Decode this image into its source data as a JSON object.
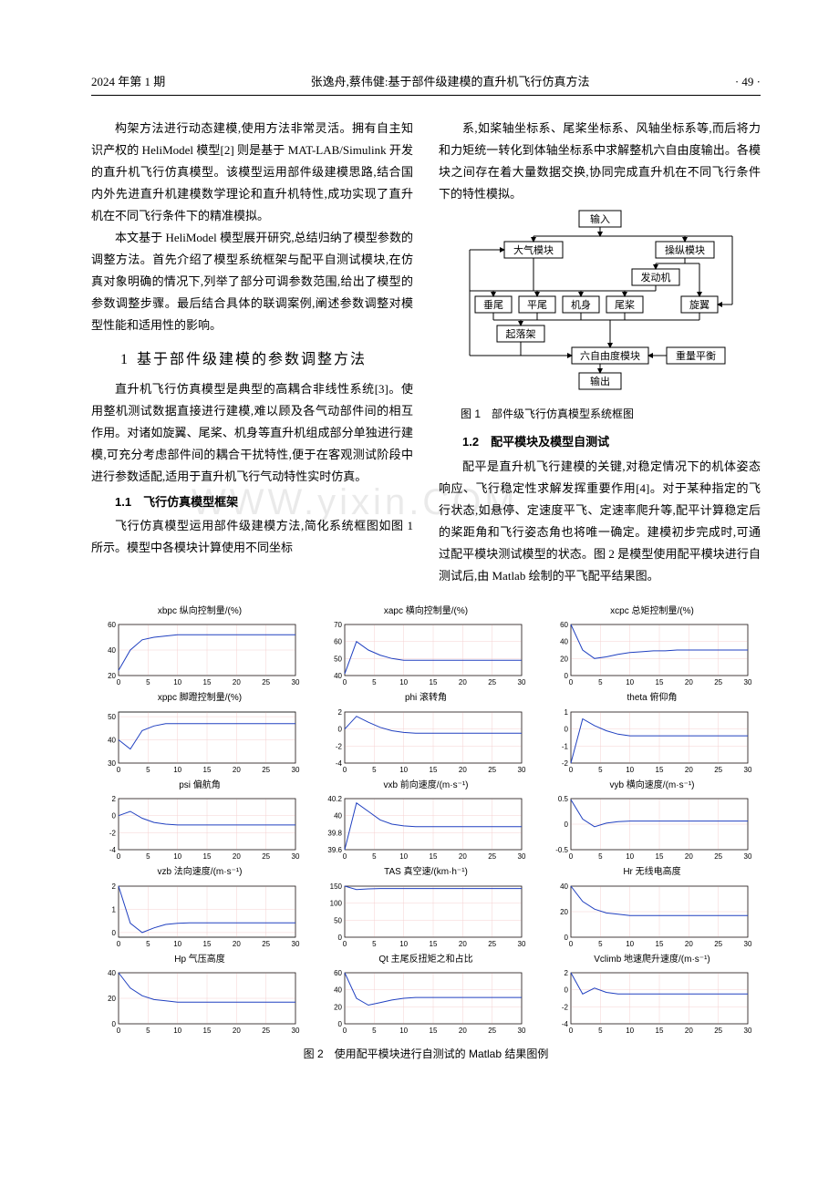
{
  "header": {
    "left": "2024 年第 1 期",
    "center": "张逸舟,蔡伟健:基于部件级建模的直升机飞行仿真方法",
    "right": "· 49 ·"
  },
  "text": {
    "p1": "构架方法进行动态建模,使用方法非常灵活。拥有自主知识产权的 HeliModel 模型[2] 则是基于 MAT-LAB/Simulink 开发的直升机飞行仿真模型。该模型运用部件级建模思路,结合国内外先进直升机建模数学理论和直升机特性,成功实现了直升机在不同飞行条件下的精准模拟。",
    "p2": "本文基于 HeliModel 模型展开研究,总结归纳了模型参数的调整方法。首先介绍了模型系统框架与配平自测试模块,在仿真对象明确的情况下,列举了部分可调参数范围,给出了模型的参数调整步骤。最后结合具体的联调案例,阐述参数调整对模型性能和适用性的影响。",
    "sec1_title": "基于部件级建模的参数调整方法",
    "sec1_num": "1",
    "p3": "直升机飞行仿真模型是典型的高耦合非线性系统[3]。使用整机测试数据直接进行建模,难以顾及各气动部件间的相互作用。对诸如旋翼、尾桨、机身等直升机组成部分单独进行建模,可充分考虑部件间的耦合干扰特性,便于在客观测试阶段中进行参数适配,适用于直升机飞行气动特性实时仿真。",
    "sec11_title": "1.1　飞行仿真模型框架",
    "p4": "飞行仿真模型运用部件级建模方法,简化系统框图如图 1 所示。模型中各模块计算使用不同坐标",
    "p5": "系,如桨轴坐标系、尾桨坐标系、风轴坐标系等,而后将力和力矩统一转化到体轴坐标系中求解整机六自由度输出。各模块之间存在着大量数据交换,协同完成直升机在不同飞行条件下的特性模拟。",
    "fig1_caption": "图 1　部件级飞行仿真模型系统框图",
    "sec12_title": "1.2　配平模块及模型自测试",
    "p6": "配平是直升机飞行建模的关键,对稳定情况下的机体姿态响应、飞行稳定性求解发挥重要作用[4]。对于某种指定的飞行状态,如悬停、定速度平飞、定速率爬升等,配平计算稳定后的桨距角和飞行姿态角也将唯一确定。建模初步完成时,可通过配平模块测试模型的状态。图 2 是模型使用配平模块进行自测试后,由 Matlab 绘制的平飞配平结果图。",
    "fig2_caption": "图 2　使用配平模块进行自测试的 Matlab 结果图例",
    "watermark": "WWW.YIXIN.COM"
  },
  "fig1": {
    "boxes": {
      "input": "输入",
      "atmo": "大气模块",
      "ctrl": "操纵模块",
      "engine": "发动机",
      "vtail": "垂尾",
      "htail": "平尾",
      "body": "机身",
      "tailrotor": "尾桨",
      "rotor": "旋翼",
      "gear": "起落架",
      "sixdof": "六自由度模块",
      "weight": "重量平衡",
      "output": "输出"
    }
  },
  "fig2": {
    "x_ticks": [
      0,
      5,
      10,
      15,
      20,
      25,
      30
    ],
    "grid_color": "#f5d0d0",
    "line_color": "#2040c0",
    "charts": [
      {
        "title": "xbpc 纵向控制量/(%)",
        "yticks": [
          "20",
          "40",
          "60"
        ],
        "ylim": [
          20,
          60
        ],
        "y": [
          24,
          40,
          48,
          50,
          51,
          52,
          52,
          52,
          52,
          52,
          52,
          52,
          52,
          52,
          52,
          52
        ]
      },
      {
        "title": "xapc 横向控制量/(%)",
        "yticks": [
          "40",
          "50",
          "60",
          "70"
        ],
        "ylim": [
          40,
          70
        ],
        "y": [
          41,
          60,
          55,
          52,
          50,
          49,
          49,
          49,
          49,
          49,
          49,
          49,
          49,
          49,
          49,
          49
        ]
      },
      {
        "title": "xcpc 总矩控制量/(%)",
        "yticks": [
          "0",
          "20",
          "40",
          "60"
        ],
        "ylim": [
          0,
          60
        ],
        "y": [
          60,
          30,
          20,
          22,
          25,
          27,
          28,
          29,
          29,
          30,
          30,
          30,
          30,
          30,
          30,
          30
        ]
      },
      {
        "title": "xppc 脚蹬控制量/(%)",
        "yticks": [
          "30",
          "40",
          "50"
        ],
        "ylim": [
          30,
          52
        ],
        "y": [
          40,
          36,
          44,
          46,
          47,
          47,
          47,
          47,
          47,
          47,
          47,
          47,
          47,
          47,
          47,
          47
        ]
      },
      {
        "title": "phi 滚转角",
        "yticks": [
          "-4",
          "-2",
          "0",
          "2"
        ],
        "ylim": [
          -4,
          2
        ],
        "y": [
          0,
          1.5,
          0.8,
          0.2,
          -0.2,
          -0.4,
          -0.5,
          -0.5,
          -0.5,
          -0.5,
          -0.5,
          -0.5,
          -0.5,
          -0.5,
          -0.5,
          -0.5
        ]
      },
      {
        "title": "theta 俯仰角",
        "yticks": [
          "-2",
          "-1",
          "0",
          "1"
        ],
        "ylim": [
          -2,
          1
        ],
        "y": [
          -2,
          0.6,
          0.2,
          -0.1,
          -0.3,
          -0.4,
          -0.4,
          -0.4,
          -0.4,
          -0.4,
          -0.4,
          -0.4,
          -0.4,
          -0.4,
          -0.4,
          -0.4
        ]
      },
      {
        "title": "psi 偏航角",
        "yticks": [
          "-4",
          "-2",
          "0",
          "2"
        ],
        "ylim": [
          -4,
          2
        ],
        "y": [
          0,
          0.5,
          -0.3,
          -0.8,
          -1,
          -1.1,
          -1.1,
          -1.1,
          -1.1,
          -1.1,
          -1.1,
          -1.1,
          -1.1,
          -1.1,
          -1.1,
          -1.1
        ]
      },
      {
        "title": "vxb 前向速度/(m·s⁻¹)",
        "yticks": [
          "39.6",
          "39.8",
          "40",
          "40.2"
        ],
        "ylim": [
          39.6,
          40.2
        ],
        "y": [
          39.6,
          40.15,
          40.05,
          39.95,
          39.9,
          39.88,
          39.87,
          39.87,
          39.87,
          39.87,
          39.87,
          39.87,
          39.87,
          39.87,
          39.87,
          39.87
        ]
      },
      {
        "title": "vyb 横向速度/(m·s⁻¹)",
        "yticks": [
          "-0.5",
          "0",
          "0.5"
        ],
        "ylim": [
          -0.5,
          0.5
        ],
        "y": [
          0.48,
          0.1,
          -0.05,
          0.02,
          0.05,
          0.06,
          0.06,
          0.06,
          0.06,
          0.06,
          0.06,
          0.06,
          0.06,
          0.06,
          0.06,
          0.06
        ]
      },
      {
        "title": "vzb 法向速度/(m·s⁻¹)",
        "yticks": [
          "0",
          "1",
          "2"
        ],
        "ylim": [
          -0.2,
          2
        ],
        "y": [
          2,
          0.4,
          0,
          0.2,
          0.35,
          0.4,
          0.42,
          0.42,
          0.42,
          0.42,
          0.42,
          0.42,
          0.42,
          0.42,
          0.42,
          0.42
        ]
      },
      {
        "title": "TAS 真空速/(km·h⁻¹)",
        "yticks": [
          "0",
          "50",
          "100",
          "150"
        ],
        "ylim": [
          0,
          150
        ],
        "y": [
          150,
          140,
          142,
          143,
          143,
          143,
          143,
          143,
          143,
          143,
          143,
          143,
          143,
          143,
          143,
          143
        ]
      },
      {
        "title": "Hr 无线电高度",
        "yticks": [
          "0",
          "20",
          "40"
        ],
        "ylim": [
          0,
          40
        ],
        "y": [
          40,
          28,
          22,
          19,
          18,
          17,
          17,
          17,
          17,
          17,
          17,
          17,
          17,
          17,
          17,
          17
        ]
      },
      {
        "title": "Hp 气压高度",
        "yticks": [
          "0",
          "20",
          "40"
        ],
        "ylim": [
          0,
          40
        ],
        "y": [
          40,
          28,
          22,
          19,
          18,
          17,
          17,
          17,
          17,
          17,
          17,
          17,
          17,
          17,
          17,
          17
        ]
      },
      {
        "title": "Qt 主尾反扭矩之和占比",
        "yticks": [
          "0",
          "20",
          "40",
          "60"
        ],
        "ylim": [
          0,
          60
        ],
        "y": [
          60,
          30,
          22,
          25,
          28,
          30,
          31,
          31,
          31,
          31,
          31,
          31,
          31,
          31,
          31,
          31
        ]
      },
      {
        "title": "Vclimb 地速爬升速度/(m·s⁻¹)",
        "yticks": [
          "-4",
          "-2",
          "0",
          "2"
        ],
        "ylim": [
          -4,
          2
        ],
        "y": [
          2,
          -0.5,
          0.2,
          -0.3,
          -0.5,
          -0.5,
          -0.5,
          -0.5,
          -0.5,
          -0.5,
          -0.5,
          -0.5,
          -0.5,
          -0.5,
          -0.5,
          -0.5
        ]
      }
    ]
  }
}
